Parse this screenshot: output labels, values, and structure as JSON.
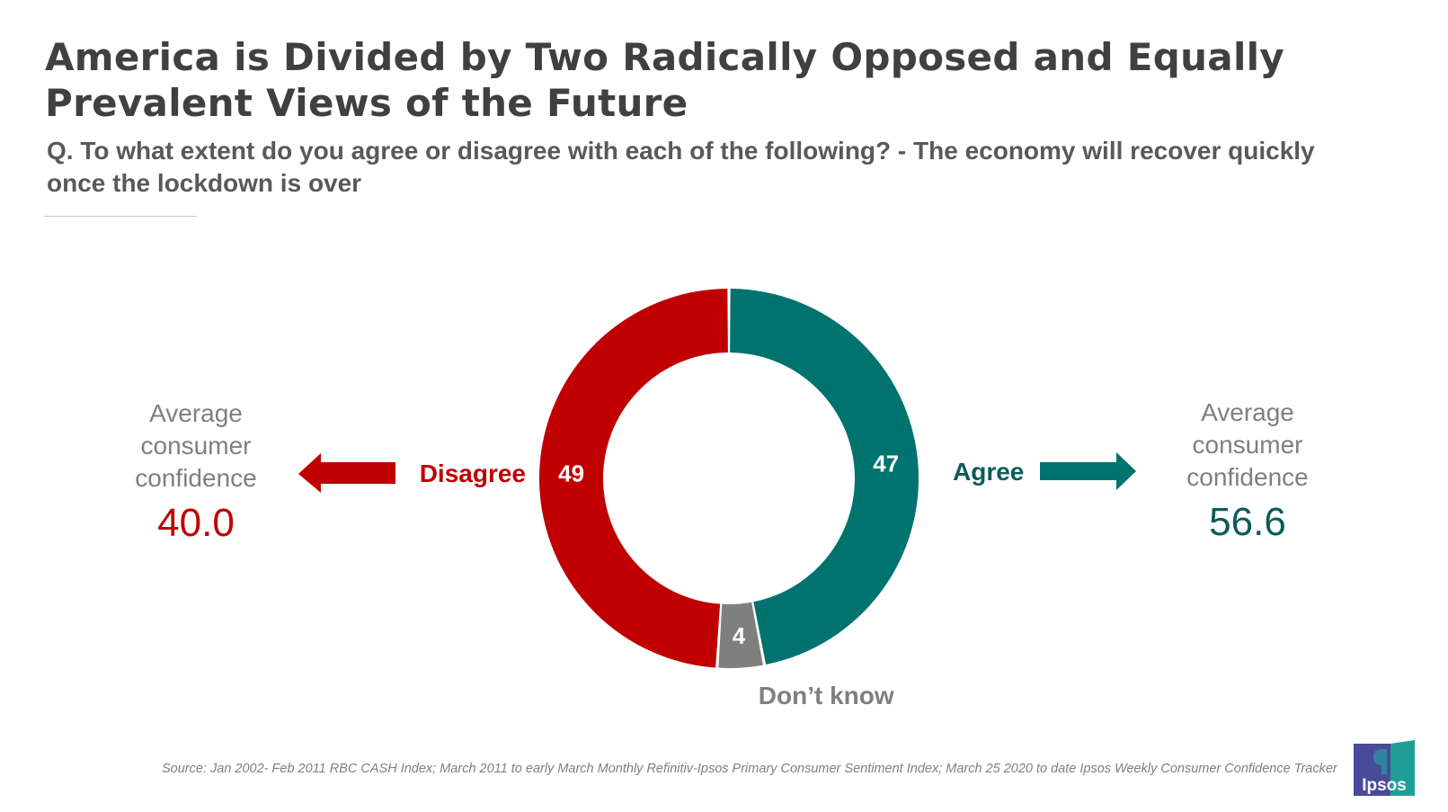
{
  "title": "America is Divided by Two Radically Opposed and Equally Prevalent Views of the Future",
  "subtitle": "Q. To what extent do you agree or disagree with each of the following? - The economy will recover quickly once the lockdown is over",
  "left_panel": {
    "lines": [
      "Average",
      "consumer",
      "confidence"
    ],
    "value": "40.0"
  },
  "right_panel": {
    "lines": [
      "Average",
      "consumer",
      "confidence"
    ],
    "value": "56.6"
  },
  "source": "Source: Jan 2002- Feb 2011 RBC CASH Index; March 2011 to early March Monthly Refinitiv-Ipsos Primary Consumer Sentiment Index; March 25 2020 to date Ipsos Weekly Consumer Confidence Tracker",
  "logo_text": "Ipsos",
  "colors": {
    "agree": "#00736e",
    "disagree": "#c00000",
    "dont_know": "#7f7f7f",
    "agree_text": "#0b5c58",
    "disagree_text": "#c00000"
  },
  "chart_data": {
    "type": "pie",
    "style": "donut",
    "categories": [
      "Agree",
      "Don’t know",
      "Disagree"
    ],
    "values": [
      47,
      4,
      49
    ],
    "data_labels": [
      "47",
      "4",
      "49"
    ]
  }
}
